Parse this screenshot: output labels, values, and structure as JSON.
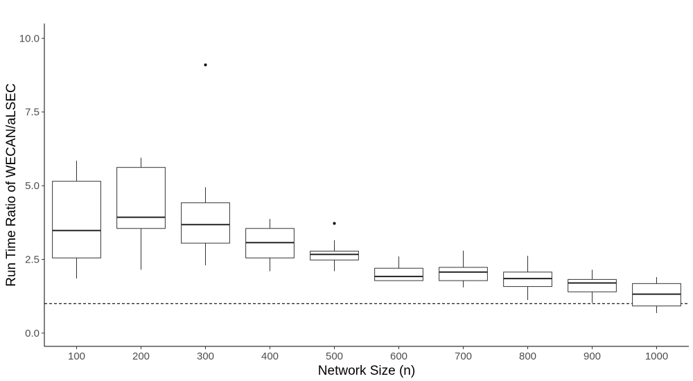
{
  "chart_data": {
    "type": "boxplot",
    "xlabel": "Network Size (n)",
    "ylabel": "Run Time Ratio of WECAN/aLSEC",
    "ylim": [
      -0.45,
      10.5
    ],
    "yticks": [
      0.0,
      2.5,
      5.0,
      7.5,
      10.0
    ],
    "ytick_labels": [
      "0.0",
      "2.5",
      "5.0",
      "7.5",
      "10.0"
    ],
    "categories": [
      "100",
      "200",
      "300",
      "400",
      "500",
      "600",
      "700",
      "800",
      "900",
      "1000"
    ],
    "boxes": [
      {
        "min": 1.85,
        "q1": 2.55,
        "median": 3.48,
        "q3": 5.15,
        "max": 5.85,
        "outliers": []
      },
      {
        "min": 2.15,
        "q1": 3.55,
        "median": 3.93,
        "q3": 5.62,
        "max": 5.95,
        "outliers": []
      },
      {
        "min": 2.3,
        "q1": 3.05,
        "median": 3.68,
        "q3": 4.42,
        "max": 4.95,
        "outliers": [
          9.1
        ]
      },
      {
        "min": 2.1,
        "q1": 2.55,
        "median": 3.07,
        "q3": 3.55,
        "max": 3.87,
        "outliers": []
      },
      {
        "min": 2.1,
        "q1": 2.48,
        "median": 2.67,
        "q3": 2.78,
        "max": 3.15,
        "outliers": [
          3.72
        ]
      },
      {
        "min": 1.78,
        "q1": 1.78,
        "median": 1.92,
        "q3": 2.2,
        "max": 2.6,
        "outliers": []
      },
      {
        "min": 1.55,
        "q1": 1.78,
        "median": 2.07,
        "q3": 2.23,
        "max": 2.8,
        "outliers": []
      },
      {
        "min": 1.12,
        "q1": 1.58,
        "median": 1.85,
        "q3": 2.07,
        "max": 2.62,
        "outliers": []
      },
      {
        "min": 1.02,
        "q1": 1.4,
        "median": 1.7,
        "q3": 1.82,
        "max": 2.15,
        "outliers": []
      },
      {
        "min": 0.68,
        "q1": 0.92,
        "median": 1.32,
        "q3": 1.68,
        "max": 1.9,
        "outliers": []
      }
    ],
    "reference_line": {
      "y": 1.0,
      "style": "dashed"
    },
    "grid": false,
    "legend": "none"
  }
}
